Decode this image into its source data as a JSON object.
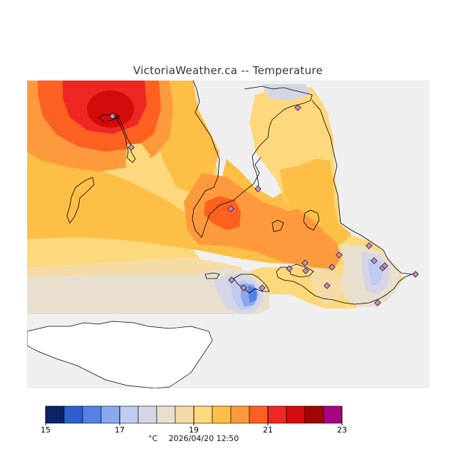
{
  "header": {
    "title": "VictoriaWeather.ca -- Temperature"
  },
  "map": {
    "background_color": "#efefef",
    "stations": [
      {
        "id": "s1"
      },
      {
        "id": "s2"
      },
      {
        "id": "s3"
      },
      {
        "id": "s4"
      },
      {
        "id": "s5"
      },
      {
        "id": "s6"
      },
      {
        "id": "s7"
      },
      {
        "id": "s8"
      },
      {
        "id": "s9"
      },
      {
        "id": "s10"
      },
      {
        "id": "s11"
      },
      {
        "id": "s12"
      },
      {
        "id": "s13"
      },
      {
        "id": "s14"
      },
      {
        "id": "s15"
      },
      {
        "id": "s16"
      },
      {
        "id": "s17"
      },
      {
        "id": "s18"
      },
      {
        "id": "s19"
      },
      {
        "id": "s20"
      }
    ]
  },
  "legend": {
    "min": 15,
    "max": 23,
    "step": 0.5,
    "tick_labels": [
      "15",
      "17",
      "19",
      "21",
      "23"
    ],
    "colors": [
      "#0b2467",
      "#2e5fcf",
      "#5382e4",
      "#8aa9ec",
      "#bfcbf0",
      "#d4d6e6",
      "#e8dfcf",
      "#f5dca6",
      "#fed87c",
      "#fdbf45",
      "#fe9a3e",
      "#fc6121",
      "#ee2724",
      "#d30b0b",
      "#a10504",
      "#a60580"
    ]
  },
  "footer": {
    "unit": "°C",
    "timestamp": "2026/04/20 12:50"
  }
}
